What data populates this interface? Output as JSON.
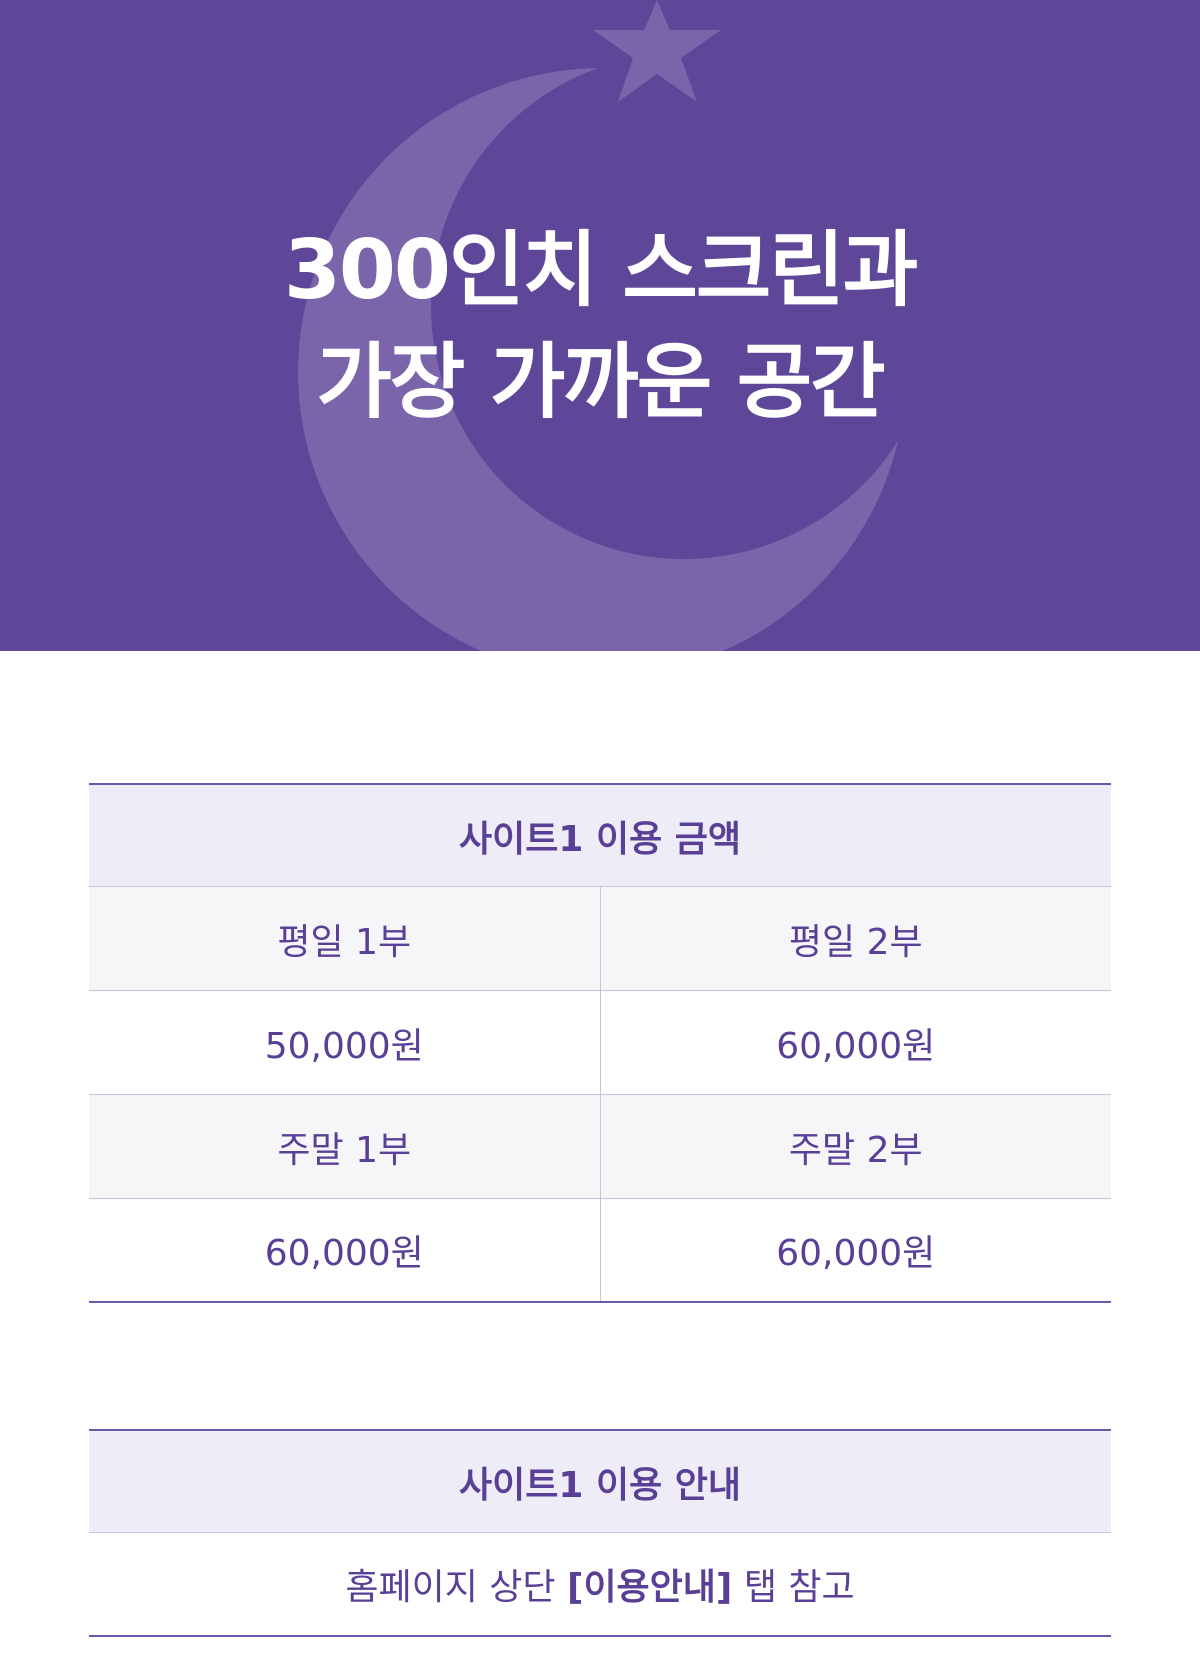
{
  "banner": {
    "title_line1": "300인치 스크린과",
    "title_line2": "가장 가까운 공간",
    "background_color": "#5e4699",
    "decoration_color": "#7a64aa",
    "icons": [
      "crescent-moon-icon",
      "star-icon"
    ]
  },
  "price_table": {
    "title": "사이트1 이용 금액",
    "rows": [
      {
        "labels": [
          "평일 1부",
          "평일 2부"
        ],
        "prices": [
          "50,000원",
          "60,000원"
        ]
      },
      {
        "labels": [
          "주말 1부",
          "주말 2부"
        ],
        "prices": [
          "60,000원",
          "60,000원"
        ]
      }
    ]
  },
  "info_table": {
    "title": "사이트1 이용 안내",
    "text_before": "홈페이지 상단 ",
    "text_bold": "[이용안내]",
    "text_after": " 탭 참고"
  },
  "colors": {
    "accent": "#5a3f96",
    "header_bg": "#eeecf6",
    "label_bg": "#f6f6f9"
  }
}
